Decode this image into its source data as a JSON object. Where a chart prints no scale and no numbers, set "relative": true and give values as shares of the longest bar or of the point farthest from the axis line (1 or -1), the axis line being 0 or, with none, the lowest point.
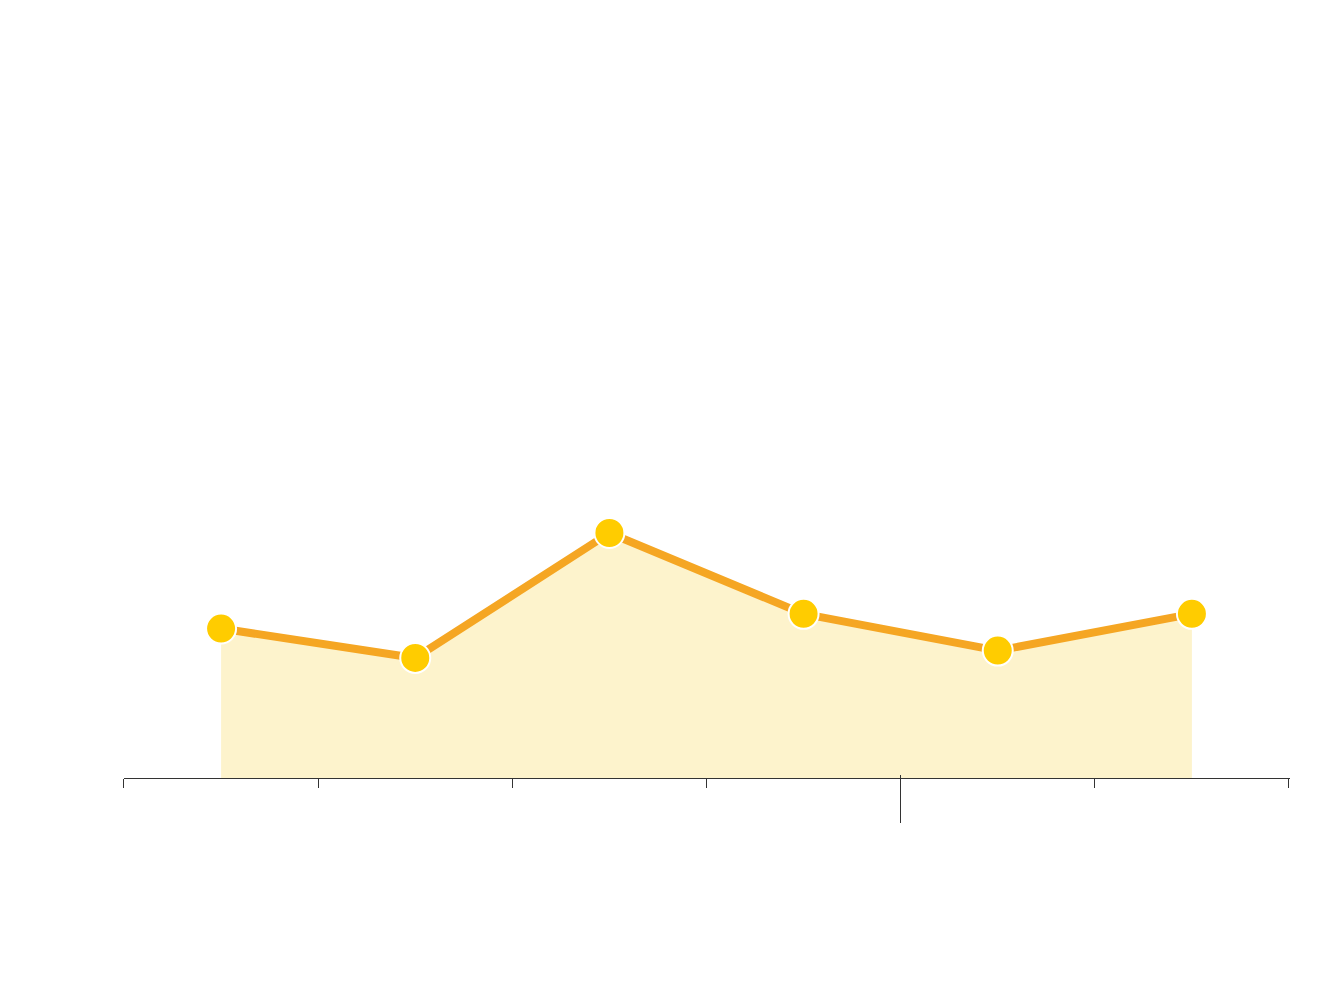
{
  "chart_data": {
    "type": "area",
    "relative": true,
    "categories": [
      null,
      null,
      null,
      null,
      null,
      null
    ],
    "series": [
      {
        "color": "#f5a623",
        "values": [
          0.61,
          0.49,
          1,
          0.67,
          0.52,
          0.67
        ]
      }
    ],
    "marker": "circle",
    "legend": false,
    "grid": false
  }
}
